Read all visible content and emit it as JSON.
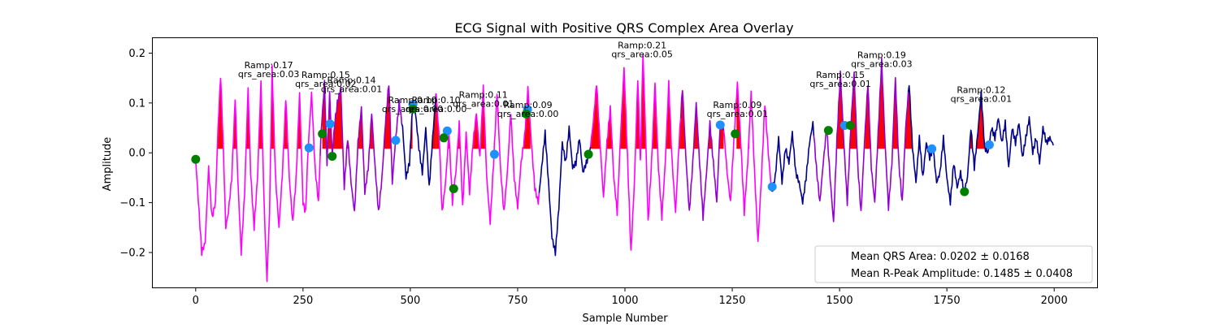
{
  "chart_data": {
    "type": "line",
    "title": "ECG Signal with Positive QRS Complex Area Overlay",
    "xlabel": "Sample Number",
    "ylabel": "Amplitude",
    "xlim": [
      -100,
      2100
    ],
    "ylim": [
      -0.27,
      0.23
    ],
    "xticks": [
      0,
      250,
      500,
      750,
      1000,
      1250,
      1500,
      1750,
      2000
    ],
    "xtick_labels": [
      "0",
      "250",
      "500",
      "750",
      "1000",
      "1250",
      "1500",
      "1750",
      "2000"
    ],
    "yticks": [
      -0.2,
      -0.1,
      0.0,
      0.1,
      0.2
    ],
    "ytick_labels": [
      "−0.2",
      "−0.1",
      "0.0",
      "0.1",
      "0.2"
    ],
    "grid": false,
    "legend_position": "bottom-right",
    "colors": {
      "signal_high": "#ff00ff",
      "signal_mid": "#9400d3",
      "signal_low": "#00008b",
      "qrs_fill": "#ff0000",
      "onset_marker": "#008000",
      "offset_marker": "#1e90ff"
    },
    "legend": [
      "Mean QRS Area: 0.0202 ± 0.0168",
      "Mean R-Peak Amplitude: 0.1485 ± 0.0408"
    ],
    "signal_segments": [
      {
        "range": [
          0,
          290
        ],
        "color": "#ff00ff"
      },
      {
        "range": [
          290,
          480
        ],
        "color": "#9400d3"
      },
      {
        "range": [
          480,
          560
        ],
        "color": "#00008b"
      },
      {
        "range": [
          560,
          800
        ],
        "color": "#ff00ff"
      },
      {
        "range": [
          800,
          920
        ],
        "color": "#00008b"
      },
      {
        "range": [
          920,
          1130
        ],
        "color": "#ff00ff"
      },
      {
        "range": [
          1130,
          1230
        ],
        "color": "#9400d3"
      },
      {
        "range": [
          1230,
          1340
        ],
        "color": "#ff00ff"
      },
      {
        "range": [
          1340,
          1440
        ],
        "color": "#00008b"
      },
      {
        "range": [
          1440,
          1660
        ],
        "color": "#9400d3"
      },
      {
        "range": [
          1660,
          2000
        ],
        "color": "#00008b"
      }
    ],
    "signal_keypoints": [
      [
        0,
        -0.015
      ],
      [
        8,
        -0.12
      ],
      [
        14,
        -0.2
      ],
      [
        22,
        -0.18
      ],
      [
        30,
        -0.03
      ],
      [
        38,
        -0.13
      ],
      [
        46,
        -0.1
      ],
      [
        52,
        0.05
      ],
      [
        58,
        0.155
      ],
      [
        64,
        0.02
      ],
      [
        70,
        -0.15
      ],
      [
        76,
        -0.12
      ],
      [
        84,
        -0.05
      ],
      [
        92,
        0.11
      ],
      [
        98,
        -0.05
      ],
      [
        106,
        -0.2
      ],
      [
        114,
        -0.08
      ],
      [
        122,
        0.13
      ],
      [
        128,
        -0.04
      ],
      [
        136,
        -0.15
      ],
      [
        144,
        -0.05
      ],
      [
        152,
        0.14
      ],
      [
        160,
        -0.12
      ],
      [
        166,
        -0.255
      ],
      [
        172,
        -0.12
      ],
      [
        178,
        0.17
      ],
      [
        186,
        -0.05
      ],
      [
        194,
        -0.15
      ],
      [
        202,
        -0.04
      ],
      [
        210,
        0.11
      ],
      [
        218,
        -0.05
      ],
      [
        226,
        -0.14
      ],
      [
        234,
        -0.05
      ],
      [
        242,
        0.12
      ],
      [
        250,
        -0.1
      ],
      [
        256,
        -0.12
      ],
      [
        262,
        0.01
      ],
      [
        270,
        0.12
      ],
      [
        278,
        -0.03
      ],
      [
        286,
        -0.1
      ],
      [
        292,
        0.04
      ],
      [
        300,
        0.14
      ],
      [
        306,
        -0.02
      ],
      [
        312,
        0.12
      ],
      [
        318,
        -0.005
      ],
      [
        324,
        0.06
      ],
      [
        330,
        0.1
      ],
      [
        338,
        0.13
      ],
      [
        346,
        -0.07
      ],
      [
        354,
        0.03
      ],
      [
        362,
        -0.06
      ],
      [
        370,
        -0.12
      ],
      [
        378,
        0.02
      ],
      [
        386,
        0.09
      ],
      [
        394,
        -0.08
      ],
      [
        402,
        -0.03
      ],
      [
        410,
        0.08
      ],
      [
        418,
        -0.03
      ],
      [
        426,
        -0.12
      ],
      [
        434,
        -0.05
      ],
      [
        442,
        0.06
      ],
      [
        450,
        0.14
      ],
      [
        458,
        -0.06
      ],
      [
        466,
        0.03
      ],
      [
        474,
        0.1
      ],
      [
        482,
        0.05
      ],
      [
        490,
        -0.05
      ],
      [
        498,
        -0.02
      ],
      [
        505,
        0.09
      ],
      [
        512,
        0.08
      ],
      [
        520,
        0.01
      ],
      [
        528,
        -0.04
      ],
      [
        536,
        0.05
      ],
      [
        544,
        -0.07
      ],
      [
        552,
        0.03
      ],
      [
        560,
        0.12
      ],
      [
        568,
        0.02
      ],
      [
        574,
        -0.12
      ],
      [
        582,
        -0.06
      ],
      [
        590,
        0.04
      ],
      [
        598,
        -0.1
      ],
      [
        606,
        -0.04
      ],
      [
        614,
        0.06
      ],
      [
        622,
        -0.11
      ],
      [
        630,
        0.04
      ],
      [
        638,
        -0.08
      ],
      [
        646,
        0.02
      ],
      [
        654,
        0.08
      ],
      [
        662,
        -0.01
      ],
      [
        670,
        0.13
      ],
      [
        678,
        -0.05
      ],
      [
        686,
        -0.14
      ],
      [
        694,
        -0.02
      ],
      [
        702,
        0.12
      ],
      [
        710,
        -0.03
      ],
      [
        718,
        -0.12
      ],
      [
        726,
        -0.04
      ],
      [
        734,
        0.08
      ],
      [
        742,
        -0.05
      ],
      [
        750,
        -0.11
      ],
      [
        758,
        -0.02
      ],
      [
        766,
        0.03
      ],
      [
        774,
        0.13
      ],
      [
        782,
        0.02
      ],
      [
        790,
        -0.07
      ],
      [
        798,
        -0.1
      ],
      [
        806,
        -0.03
      ],
      [
        814,
        0.04
      ],
      [
        822,
        -0.06
      ],
      [
        830,
        -0.17
      ],
      [
        838,
        -0.2
      ],
      [
        846,
        -0.11
      ],
      [
        854,
        0.02
      ],
      [
        862,
        -0.02
      ],
      [
        870,
        0.05
      ],
      [
        878,
        -0.03
      ],
      [
        886,
        -0.02
      ],
      [
        894,
        0.03
      ],
      [
        902,
        -0.04
      ],
      [
        910,
        -0.02
      ],
      [
        918,
        0.0
      ],
      [
        926,
        0.06
      ],
      [
        934,
        0.14
      ],
      [
        942,
        0.02
      ],
      [
        950,
        -0.09
      ],
      [
        958,
        0.02
      ],
      [
        966,
        0.09
      ],
      [
        974,
        -0.05
      ],
      [
        982,
        -0.12
      ],
      [
        990,
        0.04
      ],
      [
        998,
        0.17
      ],
      [
        1006,
        -0.01
      ],
      [
        1014,
        -0.2
      ],
      [
        1022,
        -0.06
      ],
      [
        1030,
        0.15
      ],
      [
        1036,
        -0.02
      ],
      [
        1042,
        0.2
      ],
      [
        1048,
        0.04
      ],
      [
        1054,
        -0.14
      ],
      [
        1062,
        -0.02
      ],
      [
        1070,
        0.14
      ],
      [
        1078,
        -0.03
      ],
      [
        1086,
        -0.13
      ],
      [
        1094,
        -0.02
      ],
      [
        1102,
        0.14
      ],
      [
        1110,
        -0.02
      ],
      [
        1118,
        -0.12
      ],
      [
        1126,
        0.02
      ],
      [
        1134,
        0.13
      ],
      [
        1142,
        -0.01
      ],
      [
        1150,
        -0.12
      ],
      [
        1158,
        -0.02
      ],
      [
        1166,
        0.1
      ],
      [
        1174,
        -0.02
      ],
      [
        1182,
        -0.13
      ],
      [
        1190,
        -0.04
      ],
      [
        1198,
        0.06
      ],
      [
        1206,
        -0.02
      ],
      [
        1214,
        -0.1
      ],
      [
        1222,
        0.06
      ],
      [
        1230,
        0.05
      ],
      [
        1238,
        -0.04
      ],
      [
        1246,
        -0.1
      ],
      [
        1254,
        0.03
      ],
      [
        1262,
        0.14
      ],
      [
        1270,
        0.02
      ],
      [
        1278,
        -0.12
      ],
      [
        1286,
        -0.02
      ],
      [
        1294,
        0.12
      ],
      [
        1302,
        -0.04
      ],
      [
        1310,
        -0.18
      ],
      [
        1318,
        -0.05
      ],
      [
        1326,
        0.1
      ],
      [
        1334,
        0.0
      ],
      [
        1342,
        -0.08
      ],
      [
        1350,
        -0.05
      ],
      [
        1358,
        0.03
      ],
      [
        1366,
        -0.06
      ],
      [
        1374,
        0.01
      ],
      [
        1382,
        -0.02
      ],
      [
        1390,
        0.04
      ],
      [
        1398,
        -0.04
      ],
      [
        1406,
        -0.06
      ],
      [
        1414,
        -0.1
      ],
      [
        1422,
        -0.05
      ],
      [
        1430,
        0.02
      ],
      [
        1438,
        0.06
      ],
      [
        1446,
        -0.03
      ],
      [
        1454,
        -0.1
      ],
      [
        1462,
        -0.02
      ],
      [
        1470,
        0.05
      ],
      [
        1478,
        -0.05
      ],
      [
        1486,
        -0.14
      ],
      [
        1494,
        0.03
      ],
      [
        1502,
        0.16
      ],
      [
        1510,
        0.02
      ],
      [
        1518,
        -0.1
      ],
      [
        1526,
        0.05
      ],
      [
        1534,
        0.16
      ],
      [
        1542,
        -0.02
      ],
      [
        1550,
        -0.12
      ],
      [
        1558,
        0.02
      ],
      [
        1566,
        0.14
      ],
      [
        1574,
        -0.03
      ],
      [
        1582,
        -0.1
      ],
      [
        1590,
        0.04
      ],
      [
        1598,
        0.185
      ],
      [
        1606,
        0.02
      ],
      [
        1614,
        -0.11
      ],
      [
        1622,
        -0.02
      ],
      [
        1630,
        0.15
      ],
      [
        1638,
        -0.02
      ],
      [
        1646,
        -0.1
      ],
      [
        1654,
        0.05
      ],
      [
        1662,
        0.14
      ],
      [
        1670,
        0.01
      ],
      [
        1678,
        -0.06
      ],
      [
        1686,
        0.03
      ],
      [
        1694,
        -0.05
      ],
      [
        1702,
        0.02
      ],
      [
        1710,
        -0.01
      ],
      [
        1718,
        0.01
      ],
      [
        1726,
        -0.06
      ],
      [
        1734,
        -0.04
      ],
      [
        1742,
        0.03
      ],
      [
        1750,
        -0.05
      ],
      [
        1758,
        -0.1
      ],
      [
        1766,
        -0.02
      ],
      [
        1774,
        -0.07
      ],
      [
        1782,
        -0.04
      ],
      [
        1790,
        -0.08
      ],
      [
        1798,
        -0.05
      ],
      [
        1806,
        0.05
      ],
      [
        1814,
        -0.03
      ],
      [
        1822,
        0.04
      ],
      [
        1830,
        0.12
      ],
      [
        1838,
        0.01
      ],
      [
        1846,
        0.0
      ],
      [
        1854,
        0.05
      ],
      [
        1862,
        0.03
      ],
      [
        1870,
        0.07
      ],
      [
        1878,
        0.02
      ],
      [
        1886,
        0.06
      ],
      [
        1894,
        -0.03
      ],
      [
        1902,
        0.05
      ],
      [
        1910,
        0.02
      ],
      [
        1918,
        0.06
      ],
      [
        1926,
        -0.01
      ],
      [
        1934,
        0.03
      ],
      [
        1942,
        0.07
      ],
      [
        1950,
        0.0
      ],
      [
        1958,
        0.03
      ],
      [
        1966,
        -0.02
      ],
      [
        1974,
        0.05
      ],
      [
        1982,
        0.02
      ],
      [
        1990,
        0.03
      ],
      [
        1998,
        0.015
      ]
    ],
    "qrs_areas": [
      [
        20,
        260
      ],
      [
        295,
        460
      ],
      [
        500,
        505
      ],
      [
        545,
        560
      ],
      [
        560,
        680
      ],
      [
        760,
        780
      ],
      [
        920,
        1230
      ],
      [
        1260,
        1290
      ],
      [
        1480,
        1560
      ],
      [
        1560,
        1720
      ],
      [
        1790,
        1850
      ]
    ],
    "onset_markers": [
      [
        0,
        -0.013
      ],
      [
        295,
        0.038
      ],
      [
        318,
        -0.007
      ],
      [
        506,
        0.088
      ],
      [
        578,
        0.03
      ],
      [
        601,
        -0.072
      ],
      [
        770,
        0.078
      ],
      [
        915,
        -0.003
      ],
      [
        1257,
        0.038
      ],
      [
        1474,
        0.045
      ],
      [
        1525,
        0.055
      ],
      [
        1791,
        -0.078
      ]
    ],
    "offset_markers": [
      [
        264,
        0.01
      ],
      [
        313,
        0.058
      ],
      [
        466,
        0.025
      ],
      [
        506,
        0.097
      ],
      [
        586,
        0.044
      ],
      [
        696,
        -0.003
      ],
      [
        773,
        0.087
      ],
      [
        1222,
        0.056
      ],
      [
        1343,
        -0.068
      ],
      [
        1512,
        0.055
      ],
      [
        1715,
        0.008
      ],
      [
        1849,
        0.016
      ]
    ],
    "annotations": [
      {
        "x": 170,
        "y": 0.17,
        "ramp": "Ramp:0.17",
        "area": "qrs_area:0.03"
      },
      {
        "x": 303,
        "y": 0.15,
        "ramp": "Ramp:0.15",
        "area": "qrs_area:0.02"
      },
      {
        "x": 363,
        "y": 0.14,
        "ramp": "Ramp:0.14",
        "area": "qrs_area:0.01"
      },
      {
        "x": 505,
        "y": 0.1,
        "ramp": "Ramp:0.10",
        "area": "qrs_area:0.00"
      },
      {
        "x": 560,
        "y": 0.1,
        "ramp": "Ramp:0.10",
        "area": "qrs_area:0.00"
      },
      {
        "x": 670,
        "y": 0.11,
        "ramp": "Ramp:0.11",
        "area": "qrs_area:0.01"
      },
      {
        "x": 774,
        "y": 0.09,
        "ramp": "Ramp:0.09",
        "area": "qrs_area:0.00"
      },
      {
        "x": 1040,
        "y": 0.21,
        "ramp": "Ramp:0.21",
        "area": "qrs_area:0.05"
      },
      {
        "x": 1262,
        "y": 0.09,
        "ramp": "Ramp:0.09",
        "area": "qrs_area:0.01"
      },
      {
        "x": 1502,
        "y": 0.15,
        "ramp": "Ramp:0.15",
        "area": "qrs_area:0.01"
      },
      {
        "x": 1598,
        "y": 0.19,
        "ramp": "Ramp:0.19",
        "area": "qrs_area:0.03"
      },
      {
        "x": 1830,
        "y": 0.12,
        "ramp": "Ramp:0.12",
        "area": "qrs_area:0.01"
      }
    ]
  }
}
